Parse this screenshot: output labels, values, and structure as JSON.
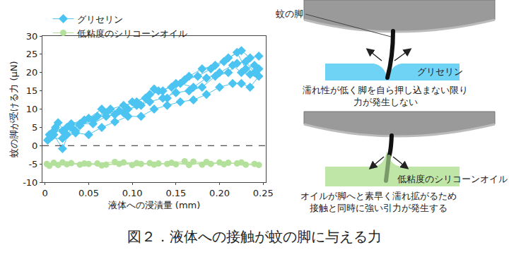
{
  "chart_data": {
    "type": "line",
    "x_label": "液体への浸漬量 (mm)",
    "y_label": "蚊の脚が受ける力 (μN)",
    "xlim": [
      -0.003,
      0.253
    ],
    "xticks": [
      0,
      0.05,
      {
        "value": 0.1,
        "label": "0.10"
      },
      0.15,
      {
        "value": 0.2,
        "label": "0.20"
      },
      0.25
    ],
    "ylim": [
      -10,
      30
    ],
    "yticks": [
      -10,
      -5,
      0,
      5,
      10,
      15,
      20,
      25,
      30
    ],
    "grid": false,
    "legend": "top-left",
    "hline": {
      "y": 0,
      "line_style": "dash"
    },
    "series": [
      {
        "name": "グリセリン",
        "color": "#4cc4f2",
        "marker": "diamond",
        "line_style": "solid",
        "x": [
          0.005,
          0.012,
          0.02,
          0.03,
          0.045,
          0.06,
          0.075,
          0.09,
          0.105,
          0.12,
          0.135,
          0.15,
          0.165,
          0.18,
          0.195,
          0.21,
          0.225,
          0.235,
          0.245,
          null,
          0.003,
          0.01,
          0.02,
          0.03,
          0.04,
          0.055,
          0.07,
          0.085,
          0.1,
          0.115,
          0.13,
          0.145,
          0.16,
          0.175,
          0.19,
          0.205,
          0.22,
          0.23,
          0.24,
          null,
          0.008,
          0.015,
          0.025,
          0.035,
          0.05,
          0.065,
          0.08,
          0.095,
          0.11,
          0.125,
          0.14,
          0.155,
          0.17,
          0.185,
          0.2,
          0.215,
          0.225,
          0.235,
          0.245,
          null,
          0.005,
          0.02,
          0.035,
          0.05,
          0.065,
          0.08,
          0.095,
          0.11,
          0.125,
          0.14,
          0.155,
          0.17,
          0.185,
          0.2,
          0.215,
          0.225,
          0.235,
          0.245,
          null,
          0.01,
          0.025,
          0.04,
          0.055,
          0.07,
          0.09,
          0.105,
          0.12,
          0.135,
          0.15,
          0.165,
          0.18,
          0.195,
          0.21,
          0.22,
          0.23,
          0.24
        ],
        "values": [
          3,
          5,
          4,
          6,
          7,
          8,
          10,
          11,
          12,
          14,
          15,
          17,
          19,
          21,
          22,
          24,
          26,
          24,
          24.5,
          null,
          1.5,
          3,
          -0.8,
          5,
          5.5,
          7,
          9,
          9.5,
          12,
          13,
          15,
          16,
          18,
          19,
          21,
          23,
          25.5,
          21,
          22,
          null,
          2.5,
          6.3,
          3,
          4,
          7.5,
          10,
          8.5,
          10,
          11,
          15.5,
          13,
          17,
          16,
          18.5,
          20,
          22,
          20,
          19.5,
          21,
          null,
          2,
          2,
          3.5,
          3,
          5,
          6.5,
          8,
          8,
          10,
          11,
          12,
          12.5,
          14,
          16,
          17,
          17,
          16,
          19,
          null,
          4,
          5,
          6,
          6,
          8,
          9,
          11,
          12,
          13,
          14.5,
          15,
          16,
          19,
          20,
          22.5,
          23,
          20
        ]
      },
      {
        "name": "低粘度のシリコーンオイル",
        "color": "#b3e09a",
        "marker": "circle",
        "line_style": "solid",
        "x": [
          0.002,
          0.015,
          0.03,
          0.05,
          0.07,
          0.09,
          0.11,
          0.13,
          0.15,
          0.17,
          0.19,
          0.21,
          0.23,
          0.245,
          null,
          0.005,
          0.02,
          0.04,
          0.06,
          0.08,
          0.1,
          0.12,
          0.14,
          0.16,
          0.18,
          0.2,
          0.22,
          0.24,
          null,
          0.01,
          0.025,
          0.045,
          0.065,
          0.085,
          0.105,
          0.125,
          0.145,
          0.165,
          0.185,
          0.205,
          0.225
        ],
        "values": [
          -5,
          -5.3,
          -4.8,
          -5,
          -5.2,
          -4.6,
          -5,
          -4.9,
          -5.1,
          -4.4,
          -5,
          -4.7,
          -5.2,
          -5.3,
          null,
          -5.5,
          -4.6,
          -5.2,
          -4.9,
          -4.5,
          -5.3,
          -4.8,
          -5,
          -4.3,
          -5.2,
          -4.6,
          -4.9,
          -5,
          null,
          -4.7,
          -5.1,
          -4.9,
          -5.4,
          -5,
          -4.8,
          -5.2,
          -4.7,
          -5.3,
          -4.5,
          -5.1,
          -4.6
        ]
      }
    ]
  },
  "diagram": {
    "leg_label": "蚊の脚",
    "top": {
      "liquid": "グリセリン",
      "text": [
        "濡れ性が低く脚を自ら押し込まない限り",
        "力が発生しない"
      ]
    },
    "bottom": {
      "liquid": "低粘度のシリコーンオイル",
      "text": [
        "オイルが脚へと素早く濡れ拡がるため",
        "接触と同時に強い引力が発生する"
      ]
    }
  },
  "caption": "図２．液体への接触が蚊の脚に与える力"
}
